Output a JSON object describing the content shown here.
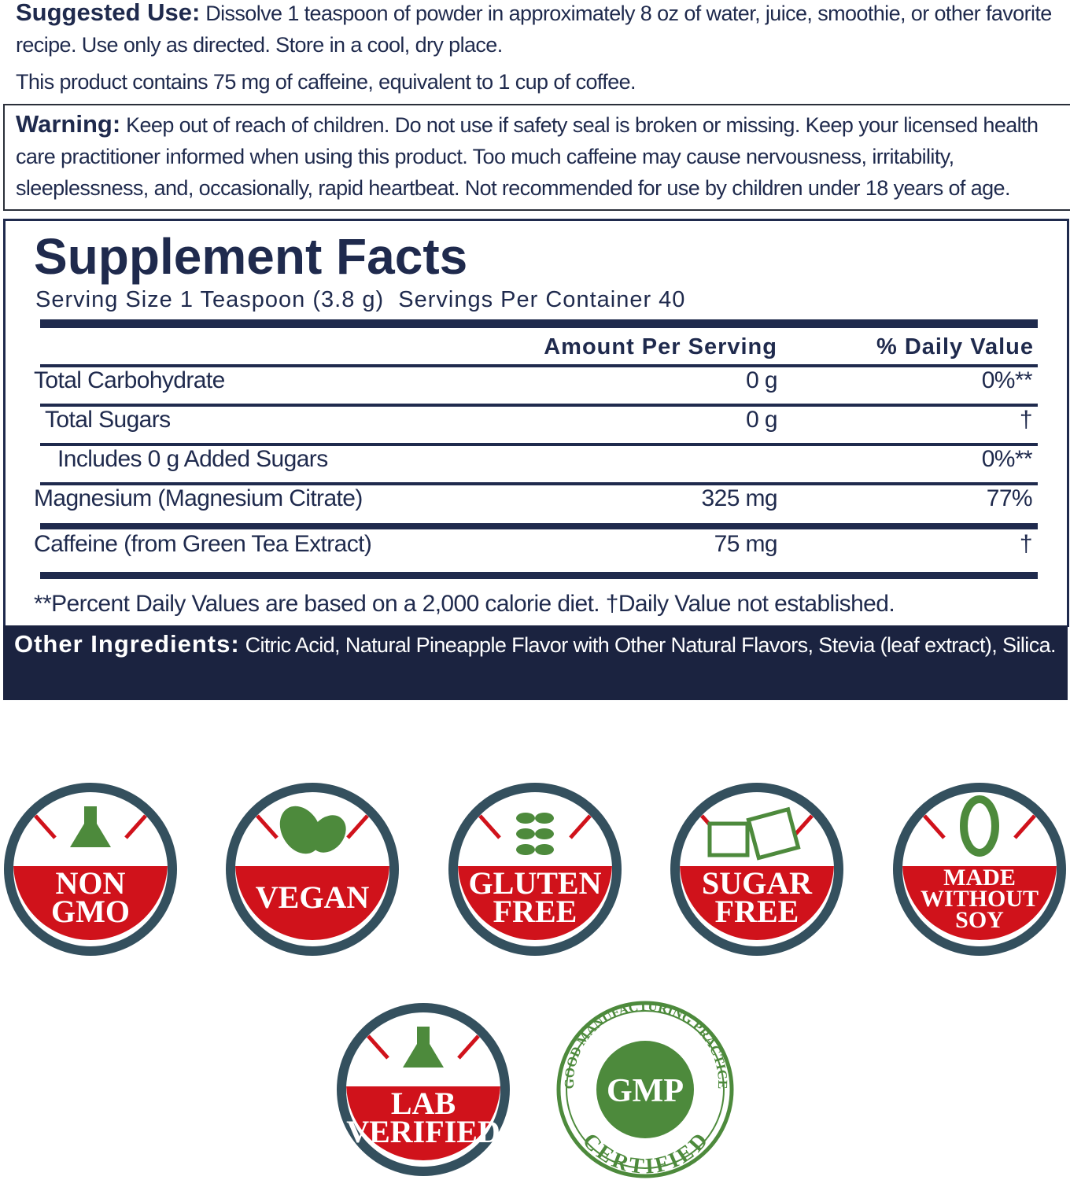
{
  "suggested_use": {
    "label": "Suggested Use:",
    "text": "Dissolve 1 teaspoon of powder in approximately 8 oz of water, juice, smoothie, or other favorite recipe. Use only as directed. Store in a cool, dry place."
  },
  "caffeine_note": "This product contains 75 mg of caffeine, equivalent to 1 cup of coffee.",
  "warning": {
    "label": "Warning:",
    "text": "Keep out of reach of children. Do not use if safety seal is broken or missing. Keep your licensed health care practitioner informed when using this product. Too much caffeine may cause nervousness, irritability, sleeplessness, and, occasionally, rapid heartbeat. Not recommended for use by children under 18 years of age."
  },
  "supplement_facts": {
    "title": "Supplement Facts",
    "serving_size": "Serving Size 1 Teaspoon (3.8 g)",
    "servings_per_container": "Servings Per Container 40",
    "headers": {
      "amount": "Amount Per Serving",
      "daily_value": "% Daily Value"
    },
    "rows": [
      {
        "name": "Total Carbohydrate",
        "amount": "0 g",
        "daily_value": "0%**"
      },
      {
        "name": "Total Sugars",
        "amount": "0 g",
        "daily_value": "†"
      },
      {
        "name": "Includes 0 g Added Sugars",
        "daily_value": "0%**"
      },
      {
        "name": "Magnesium (Magnesium Citrate)",
        "amount": "325 mg",
        "daily_value": "77%"
      },
      {
        "name": "Caffeine (from Green Tea Extract)",
        "amount": "75 mg",
        "daily_value": "†"
      }
    ],
    "footnote": "**Percent Daily Values are based on a 2,000 calorie diet. †Daily Value not established."
  },
  "other_ingredients": {
    "label": "Other Ingredients:",
    "text": "Citric Acid, Natural Pineapple Flavor with Other Natural Flavors, Stevia (leaf extract), Silica."
  },
  "badges": [
    {
      "lines": [
        "NON",
        "GMO"
      ]
    },
    {
      "lines": [
        "VEGAN"
      ]
    },
    {
      "lines": [
        "GLUTEN",
        "FREE"
      ]
    },
    {
      "lines": [
        "SUGAR",
        "FREE"
      ]
    },
    {
      "lines": [
        "MADE",
        "WITHOUT",
        "SOY"
      ]
    },
    {
      "lines": [
        "LAB",
        "VERIFIED"
      ]
    }
  ],
  "gmp_badge": {
    "arc_top": "GOOD MANUFACTURING PRACTICE",
    "center": "GMP",
    "arc_bottom": "CERTIFIED"
  }
}
